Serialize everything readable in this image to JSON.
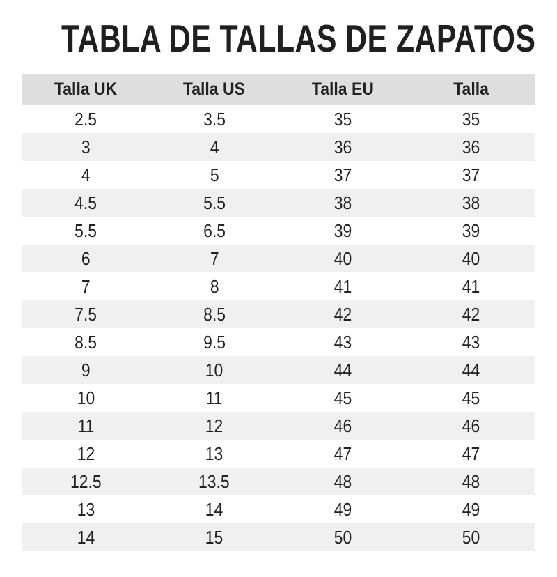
{
  "title": "TABLA DE TALLAS DE ZAPATOS",
  "chart_data": {
    "type": "table",
    "title": "TABLA DE TALLAS DE ZAPATOS",
    "columns": [
      "Talla UK",
      "Talla US",
      "Talla EU",
      "Talla"
    ],
    "rows": [
      [
        "2.5",
        "3.5",
        "35",
        "35"
      ],
      [
        "3",
        "4",
        "36",
        "36"
      ],
      [
        "4",
        "5",
        "37",
        "37"
      ],
      [
        "4.5",
        "5.5",
        "38",
        "38"
      ],
      [
        "5.5",
        "6.5",
        "39",
        "39"
      ],
      [
        "6",
        "7",
        "40",
        "40"
      ],
      [
        "7",
        "8",
        "41",
        "41"
      ],
      [
        "7.5",
        "8.5",
        "42",
        "42"
      ],
      [
        "8.5",
        "9.5",
        "43",
        "43"
      ],
      [
        "9",
        "10",
        "44",
        "44"
      ],
      [
        "10",
        "11",
        "45",
        "45"
      ],
      [
        "11",
        "12",
        "46",
        "46"
      ],
      [
        "12",
        "13",
        "47",
        "47"
      ],
      [
        "12.5",
        "13.5",
        "48",
        "48"
      ],
      [
        "13",
        "14",
        "49",
        "49"
      ],
      [
        "14",
        "15",
        "50",
        "50"
      ]
    ],
    "layout": {
      "header_row_shaded": true,
      "zebra_striping": "even-rows-shaded",
      "cell_alignment": "center"
    }
  },
  "colors": {
    "page_bg": "#ffffff",
    "title_color": "#1f1f1f",
    "text_color": "#212121",
    "header_bg": "#dedede",
    "stripe_bg": "#f0f0f0"
  }
}
